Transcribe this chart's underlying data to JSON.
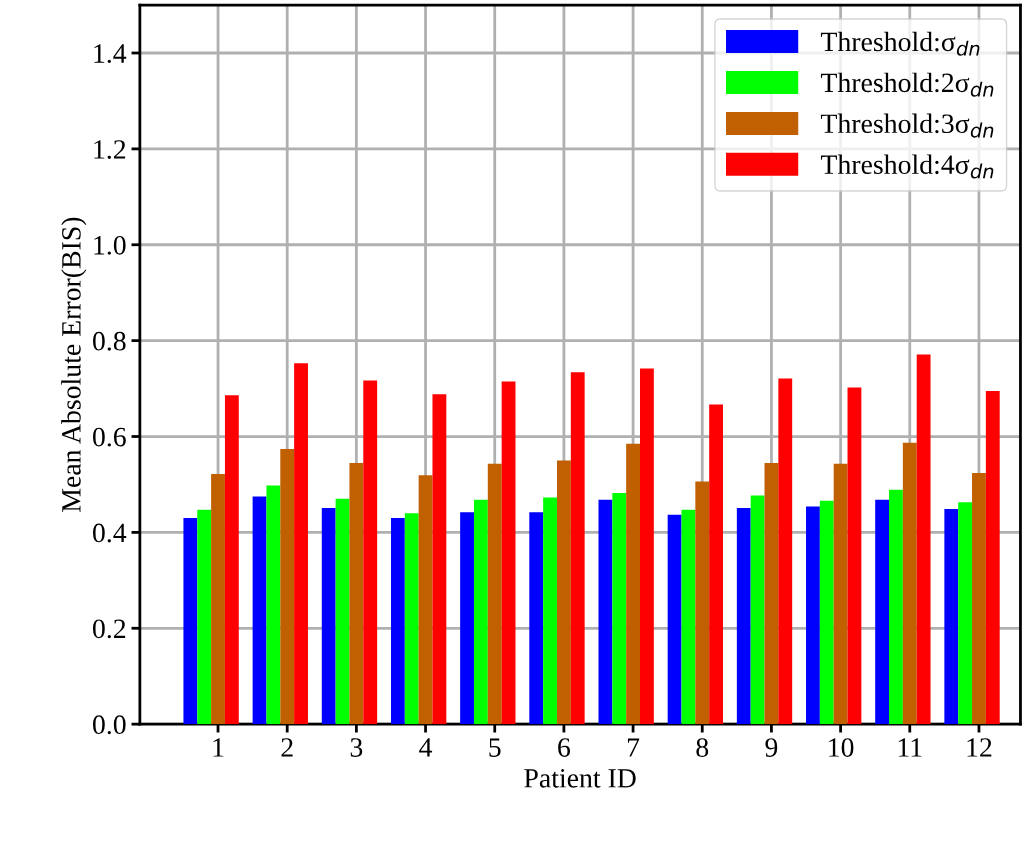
{
  "chart_data": {
    "type": "bar",
    "xlabel": "Patient ID",
    "ylabel": "Mean Absolute Error(BIS)",
    "categories": [
      "1",
      "2",
      "3",
      "4",
      "5",
      "6",
      "7",
      "8",
      "9",
      "10",
      "11",
      "12"
    ],
    "series": [
      {
        "name": "Threshold:σ$_{dn}$",
        "color": "#0000ff",
        "values": [
          0.43,
          0.475,
          0.451,
          0.43,
          0.442,
          0.442,
          0.468,
          0.437,
          0.451,
          0.454,
          0.468,
          0.449
        ]
      },
      {
        "name": "Threshold:2σ$_{dn}$",
        "color": "#00ff00",
        "values": [
          0.447,
          0.498,
          0.47,
          0.44,
          0.468,
          0.473,
          0.482,
          0.447,
          0.477,
          0.466,
          0.489,
          0.463
        ]
      },
      {
        "name": "Threshold:3σ$_{dn}$",
        "color": "#c06000",
        "values": [
          0.522,
          0.574,
          0.545,
          0.519,
          0.543,
          0.55,
          0.585,
          0.506,
          0.545,
          0.543,
          0.587,
          0.524
        ]
      },
      {
        "name": "Threshold:4σ$_{dn}$",
        "color": "#ff0000",
        "values": [
          0.686,
          0.753,
          0.717,
          0.688,
          0.715,
          0.734,
          0.742,
          0.667,
          0.721,
          0.702,
          0.771,
          0.695
        ]
      }
    ],
    "ylim": [
      0,
      1.5
    ],
    "yticks": [
      {
        "value": 0,
        "label": "0.0"
      },
      {
        "value": 0.2,
        "label": "0.2"
      },
      {
        "value": 0.4,
        "label": "0.4"
      },
      {
        "value": 0.6,
        "label": "0.6"
      },
      {
        "value": 0.8,
        "label": "0.8"
      },
      {
        "value": 1,
        "label": "1.0"
      },
      {
        "value": 1.2,
        "label": "1.2"
      },
      {
        "value": 1.4,
        "label": "1.4"
      }
    ],
    "grid": true,
    "legend": "top right"
  }
}
